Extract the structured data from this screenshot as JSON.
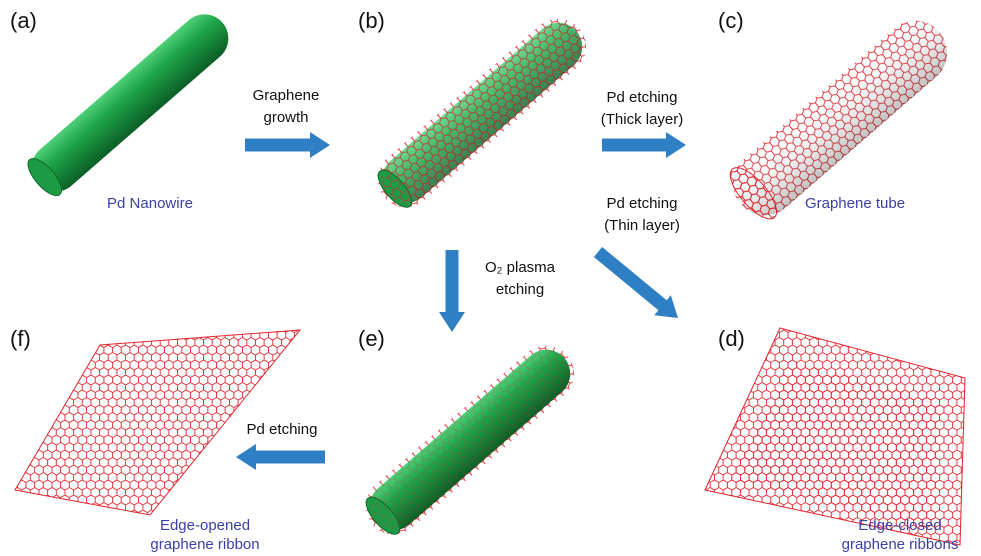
{
  "panels": [
    {
      "label": "(a)",
      "caption": [
        "Pd Nanowire"
      ]
    },
    {
      "label": "(b)",
      "caption": []
    },
    {
      "label": "(c)",
      "caption": [
        "Graphene tube"
      ]
    },
    {
      "label": "(d)",
      "caption": [
        "Edge-closed",
        "graphene ribbons"
      ]
    },
    {
      "label": "(e)",
      "caption": []
    },
    {
      "label": "(f)",
      "caption": [
        "Edge-opened",
        "graphene ribbon"
      ]
    }
  ],
  "arrows": [
    {
      "label": [
        "Graphene",
        "growth"
      ]
    },
    {
      "label": [
        "Pd etching",
        "(Thick layer)"
      ]
    },
    {
      "label": [
        "Pd etching",
        "(Thin layer)"
      ]
    },
    {
      "label": [
        "O₂ plasma",
        "etching"
      ]
    },
    {
      "label": [
        "Pd etching"
      ]
    }
  ]
}
